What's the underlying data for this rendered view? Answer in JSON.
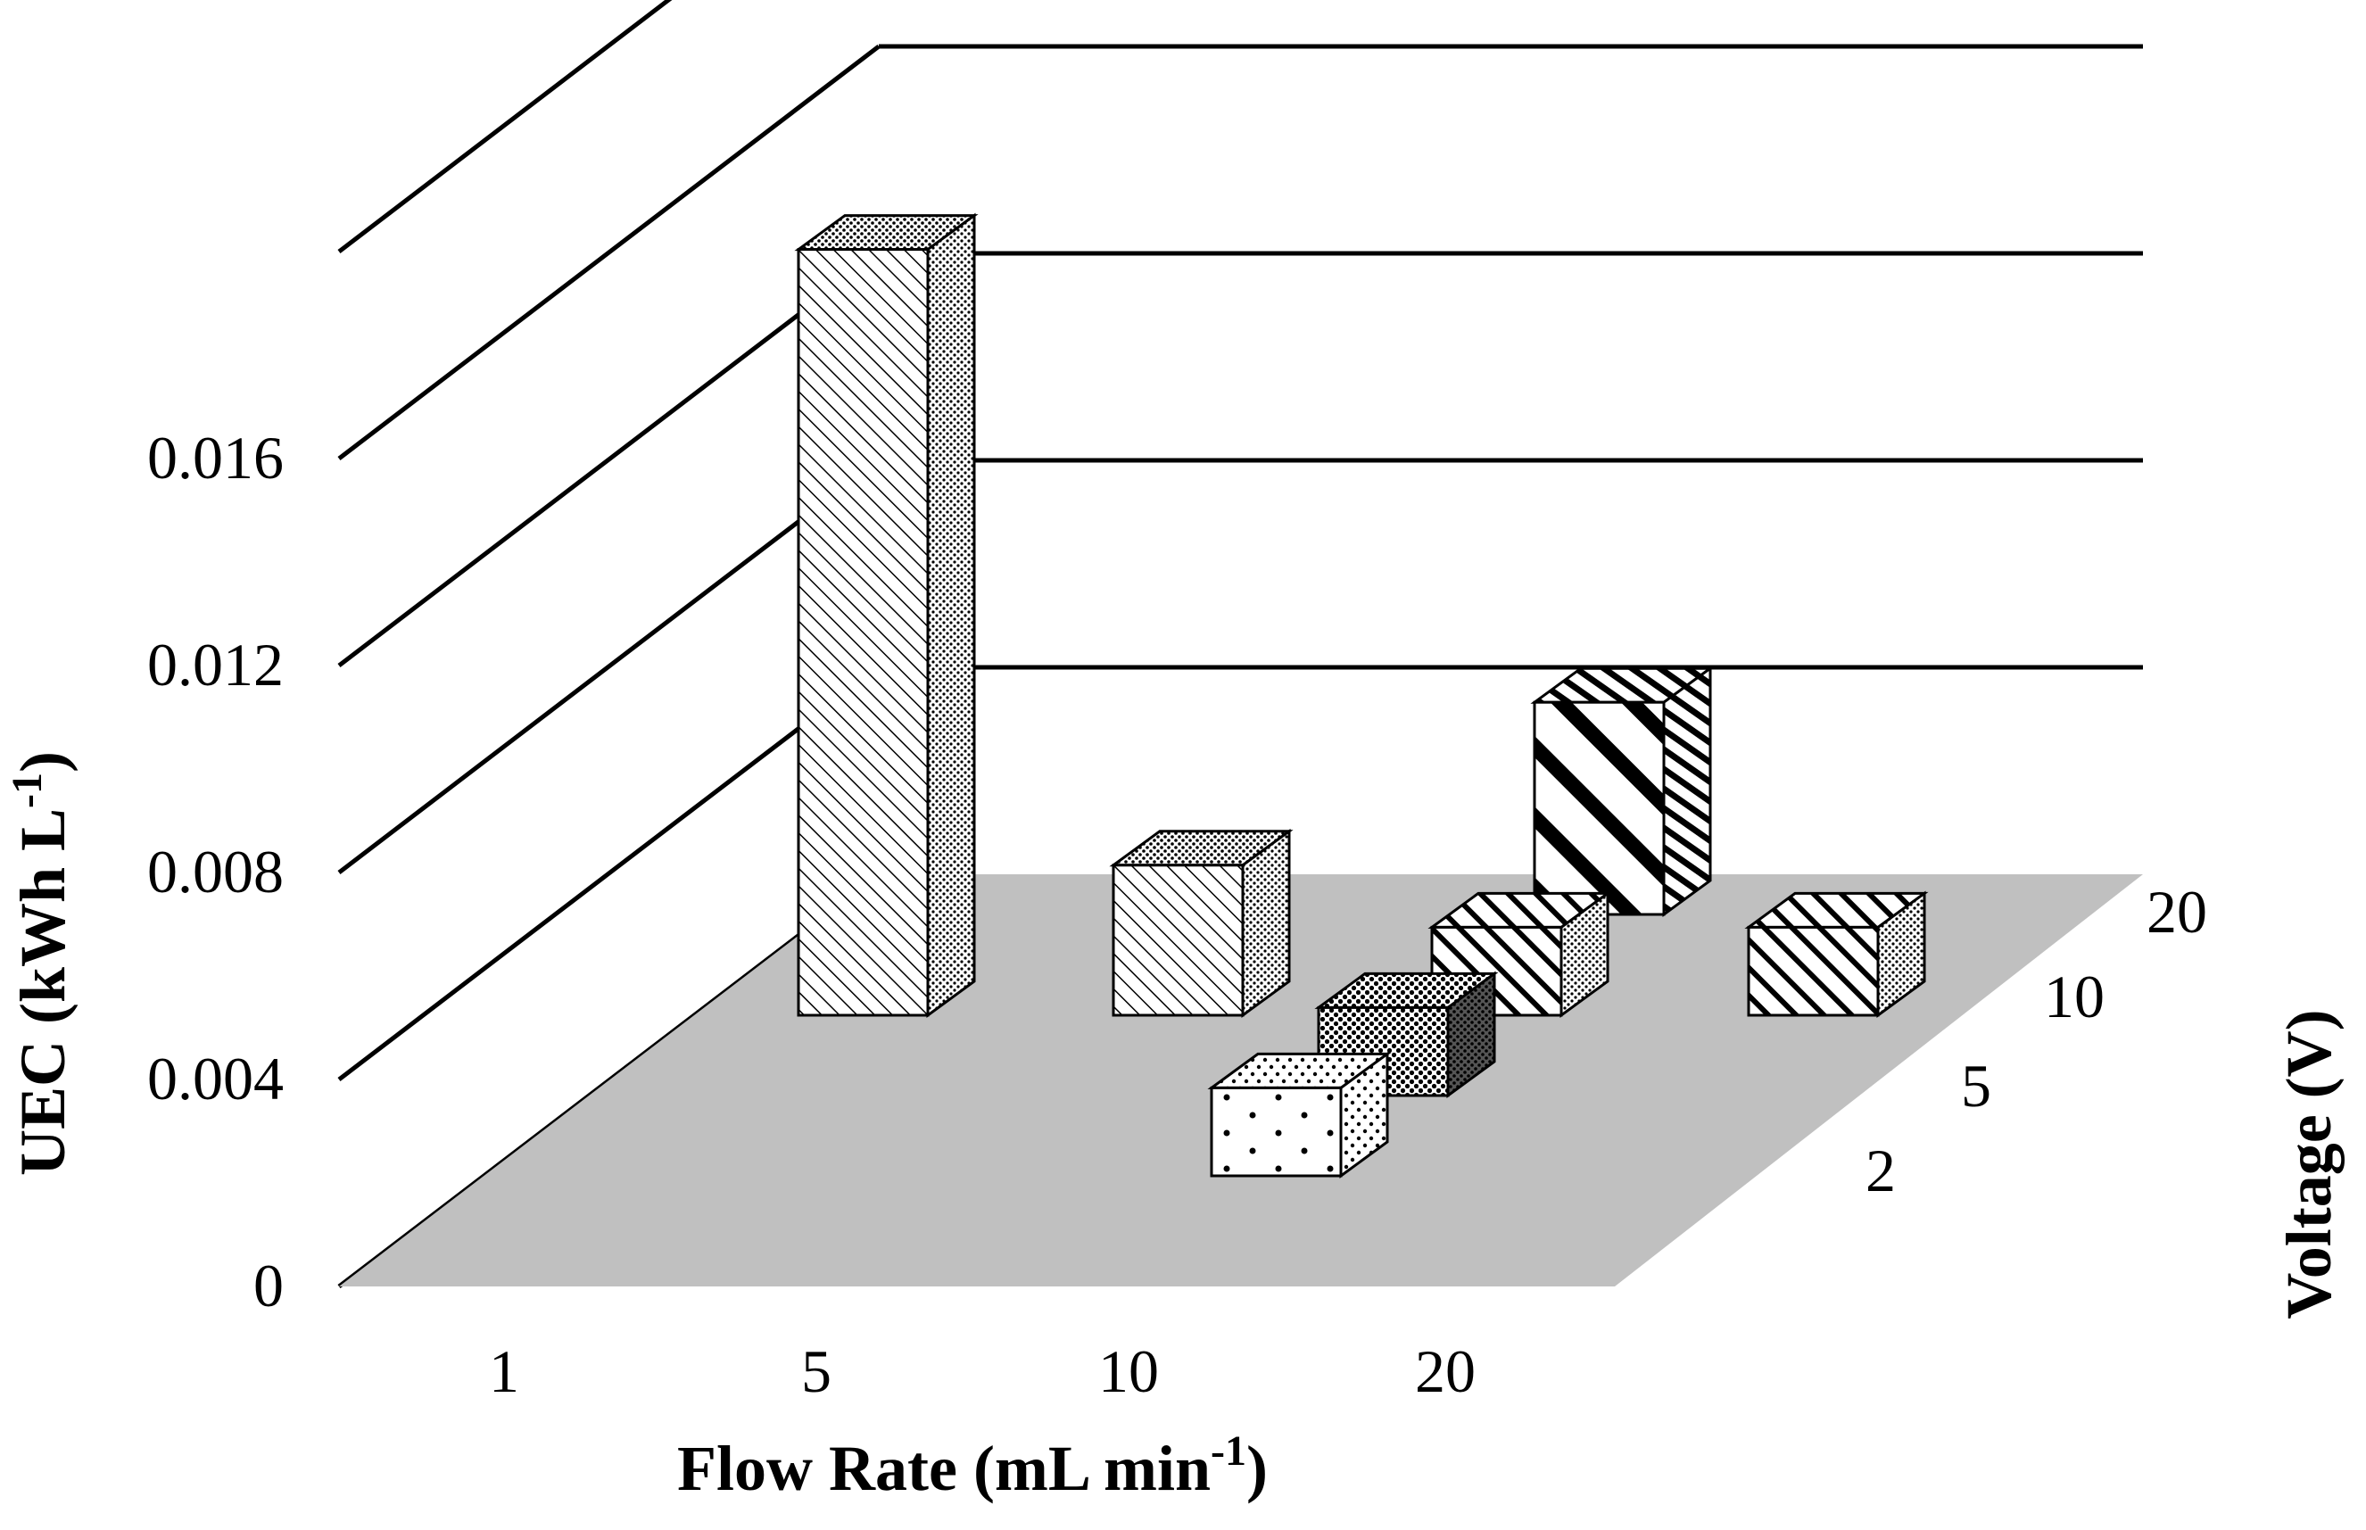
{
  "chart_data": {
    "type": "bar",
    "subtype": "3d-column",
    "title": "",
    "xlabel": "Flow Rate (mL min",
    "xlabel_sup": "-1",
    "xlabel_end": ")",
    "ylabel": "UEC (kWh L",
    "ylabel_sup": "-1",
    "ylabel_end": ")",
    "zlabel": "Voltage (V)",
    "x_categories": [
      "1",
      "5",
      "10",
      "20"
    ],
    "z_categories": [
      "2",
      "5",
      "10",
      "20"
    ],
    "y_ticks": [
      "0",
      "0.004",
      "0.008",
      "0.012",
      "0.016"
    ],
    "ylim": [
      0,
      0.024
    ],
    "grid": true,
    "floor_color": "#c0c0c0",
    "bar_fill": "#ffffff",
    "points": [
      {
        "flow_rate": "5",
        "voltage": "2",
        "value": 0.002,
        "pattern": "dots"
      },
      {
        "flow_rate": "10",
        "voltage": "5",
        "value": 0.002,
        "pattern": "crosshatch"
      },
      {
        "flow_rate": "10",
        "voltage": "20",
        "value": 0.0146,
        "pattern": "fine-diagonal"
      },
      {
        "flow_rate": "20",
        "voltage": "20",
        "value": 0.0032,
        "pattern": "fine-diagonal"
      },
      {
        "flow_rate": "20",
        "voltage": "10",
        "value": 0.0018,
        "pattern": "medium-diagonal"
      },
      {
        "flow_rate": "20",
        "voltage": "20",
        "value": 0.0039,
        "pattern": "wide-diagonal",
        "note": "rear bar right of flow 20"
      }
    ]
  }
}
